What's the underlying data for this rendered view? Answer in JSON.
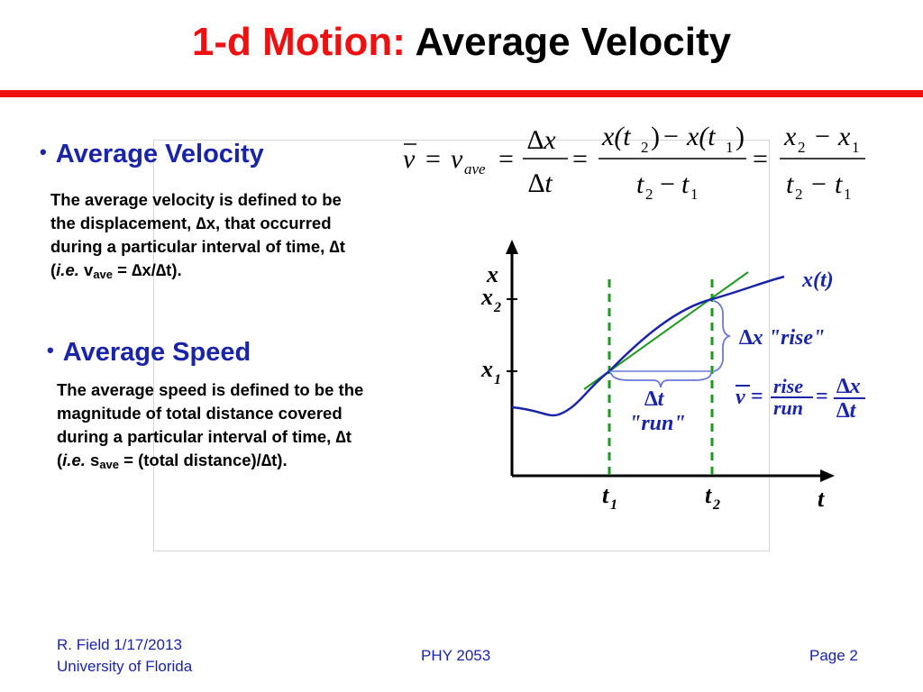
{
  "slide": {
    "title_part1": "1-d Motion:",
    "title_part2": "Average Velocity"
  },
  "sections": [
    {
      "heading": "Average Velocity",
      "text_line1": "The average velocity is defined to be",
      "text_line2": "the  displacement, ∆x, that occurred",
      "text_line3": "during a particular interval of time, ∆t",
      "text_line4_open": "(",
      "text_line4_ie": "i.e.",
      "text_line4_var": " v",
      "text_line4_sub": "ave",
      "text_line4_rest": " = ∆x/∆t)."
    },
    {
      "heading": "Average Speed",
      "text_line1": "The average speed is defined to be the",
      "text_line2": "magnitude of total distance covered",
      "text_line3": "during a particular interval of time, ∆t",
      "text_line4_open": "(",
      "text_line4_ie": "i.e.",
      "text_line4_var": " s",
      "text_line4_sub": "ave",
      "text_line4_rest": " = (total distance)/∆t)."
    }
  ],
  "equation": {
    "vbar": "v",
    "v": "v",
    "sub_ave": "ave",
    "eq": "=",
    "num1": "∆x",
    "den1": "∆t",
    "x_open": "x(t",
    "close": ")",
    "minus": "−",
    "x": "x",
    "t": "t",
    "sub_1": "1",
    "sub_2": "2"
  },
  "figure": {
    "axis_x_name": "t",
    "axis_y_name": "x",
    "label_x1": "x",
    "label_x2": "x",
    "label_t1": "t",
    "label_t2": "t",
    "sub_1": "1",
    "sub_2": "2",
    "curve_label": "x(t)",
    "rise_label": "∆x \"rise\"",
    "run_dt": "∆t",
    "run_label": "\"run\"",
    "formula_vbar": "v",
    "formula_eq": "=",
    "formula_rise": "rise",
    "formula_run": "run",
    "formula_dx": "∆x",
    "formula_dt": "∆t",
    "colors": {
      "curve": "#1a24a8",
      "tangent_secant": "#1e9a1e",
      "dashed_guides": "#1e9a1e",
      "brace": "#6a78d8",
      "axes": "#000000"
    }
  },
  "footer": {
    "author_line1": "R. Field 1/17/2013",
    "author_line2": "University of Florida",
    "course": "PHY 2053",
    "page": "Page 2"
  }
}
